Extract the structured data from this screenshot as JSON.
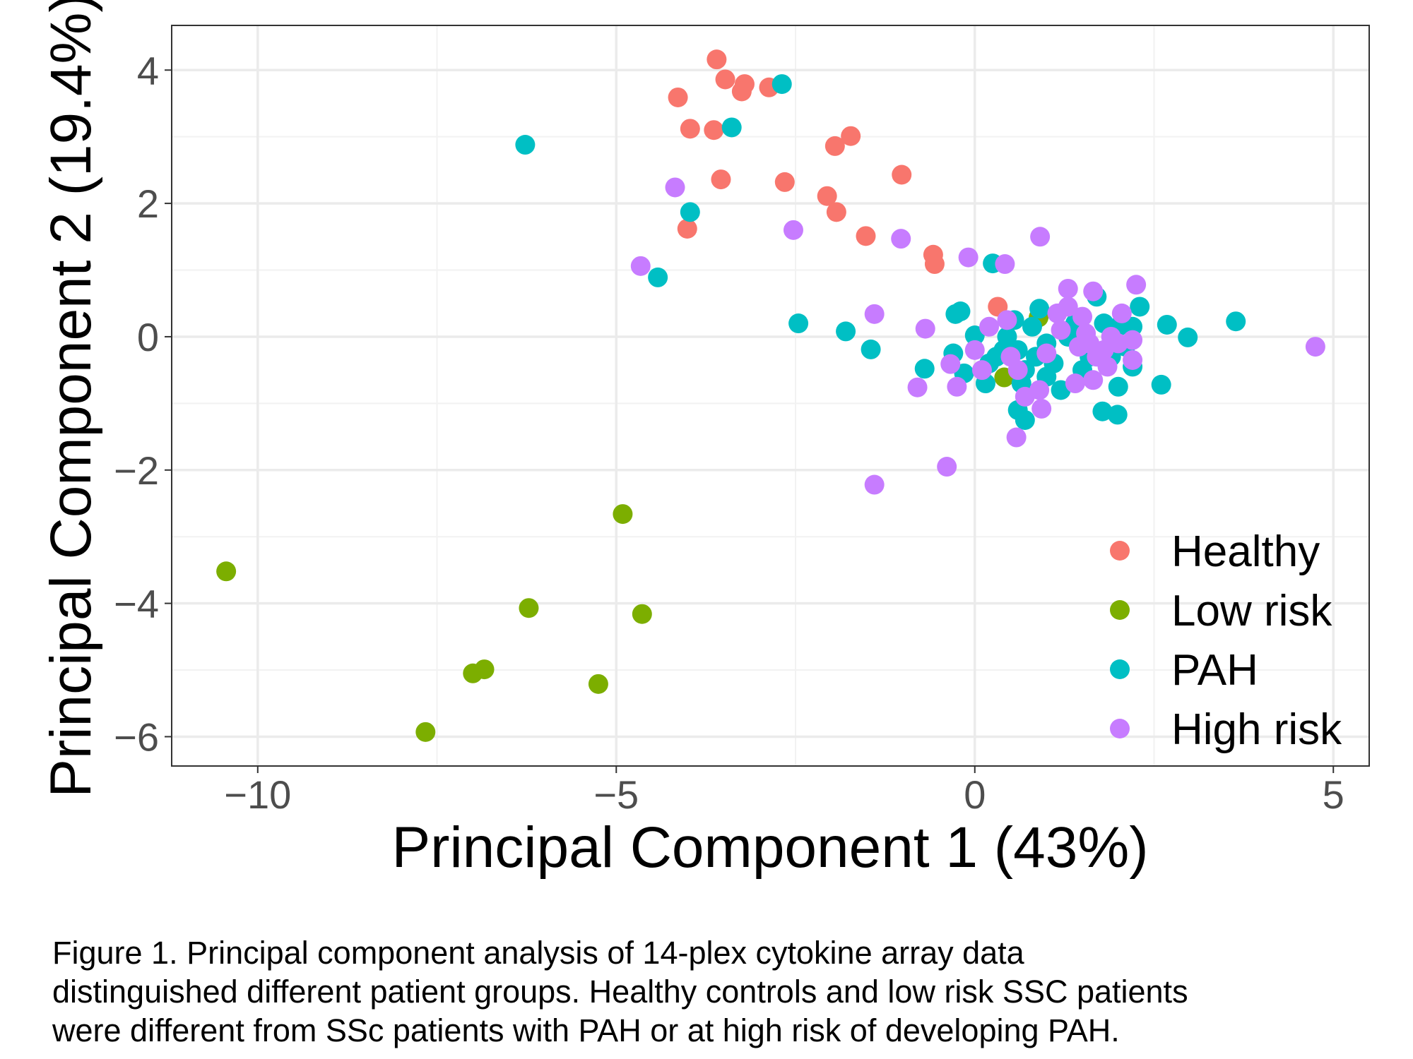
{
  "chart_data": {
    "type": "scatter",
    "title": "",
    "xlabel": "Principal Component 1 (43%)",
    "ylabel": "Principal Component 2 (19.4%)",
    "xlim": [
      -11.2,
      5.5
    ],
    "ylim": [
      -6.44,
      4.67
    ],
    "xticks": [
      -10,
      -5,
      0,
      5
    ],
    "xtick_labels": [
      "−10",
      "−5",
      "0",
      "5"
    ],
    "yticks": [
      4,
      2,
      0,
      -2,
      -4,
      -6
    ],
    "ytick_labels": [
      "4",
      "2",
      "0",
      "−2",
      "−4",
      "−6"
    ],
    "grid": true,
    "legend_position": "bottom-right-inside",
    "series": [
      {
        "name": "Healthy",
        "color": "#F8766D",
        "points": [
          [
            -3.6,
            4.16
          ],
          [
            -4.14,
            3.59
          ],
          [
            -3.48,
            3.86
          ],
          [
            -3.21,
            3.79
          ],
          [
            -3.25,
            3.68
          ],
          [
            -2.87,
            3.74
          ],
          [
            -3.97,
            3.12
          ],
          [
            -3.64,
            3.1
          ],
          [
            -3.54,
            2.36
          ],
          [
            -1.95,
            2.86
          ],
          [
            -1.73,
            3.01
          ],
          [
            -1.02,
            2.43
          ],
          [
            -2.65,
            2.32
          ],
          [
            -2.06,
            2.11
          ],
          [
            -1.93,
            1.87
          ],
          [
            -4.01,
            1.62
          ],
          [
            -1.52,
            1.51
          ],
          [
            -0.58,
            1.23
          ],
          [
            -0.56,
            1.09
          ],
          [
            0.32,
            0.45
          ]
        ]
      },
      {
        "name": "Low risk",
        "color": "#7CAE00",
        "points": [
          [
            -10.44,
            -3.52
          ],
          [
            -7.66,
            -5.93
          ],
          [
            -7.0,
            -5.05
          ],
          [
            -6.84,
            -4.99
          ],
          [
            -6.22,
            -4.07
          ],
          [
            -5.25,
            -5.21
          ],
          [
            -4.91,
            -2.66
          ],
          [
            -4.64,
            -4.16
          ],
          [
            0.89,
            0.29
          ],
          [
            0.41,
            -0.61
          ]
        ]
      },
      {
        "name": "PAH",
        "color": "#00BFC4",
        "points": [
          [
            -6.27,
            2.88
          ],
          [
            -2.69,
            3.79
          ],
          [
            -3.39,
            3.14
          ],
          [
            -3.97,
            1.87
          ],
          [
            -4.42,
            0.89
          ],
          [
            -2.46,
            0.2
          ],
          [
            -1.8,
            0.08
          ],
          [
            -1.45,
            -0.19
          ],
          [
            -0.7,
            -0.48
          ],
          [
            0.25,
            1.1
          ],
          [
            3.64,
            0.23
          ],
          [
            2.97,
            -0.01
          ],
          [
            2.68,
            0.18
          ],
          [
            2.6,
            -0.72
          ],
          [
            1.78,
            -1.12
          ],
          [
            1.99,
            -1.17
          ],
          [
            -0.27,
            0.34
          ],
          [
            -0.2,
            0.38
          ],
          [
            0.0,
            0.02
          ],
          [
            0.2,
            -0.4
          ],
          [
            0.3,
            -0.3
          ],
          [
            0.45,
            0.0
          ],
          [
            0.55,
            0.25
          ],
          [
            0.6,
            -0.2
          ],
          [
            0.7,
            -0.5
          ],
          [
            0.8,
            0.15
          ],
          [
            0.9,
            0.42
          ],
          [
            1.0,
            -0.1
          ],
          [
            1.1,
            -0.4
          ],
          [
            1.3,
            0.0
          ],
          [
            1.4,
            0.2
          ],
          [
            1.5,
            -0.5
          ],
          [
            1.7,
            0.6
          ],
          [
            1.8,
            0.2
          ],
          [
            1.9,
            -0.3
          ],
          [
            2.0,
            0.15
          ],
          [
            2.1,
            -0.15
          ],
          [
            2.2,
            -0.45
          ],
          [
            2.3,
            0.45
          ],
          [
            2.2,
            0.15
          ],
          [
            0.6,
            -1.1
          ],
          [
            0.7,
            -1.25
          ],
          [
            0.65,
            -0.7
          ],
          [
            -0.15,
            -0.55
          ],
          [
            -0.3,
            -0.25
          ],
          [
            0.15,
            -0.7
          ],
          [
            1.0,
            -0.6
          ],
          [
            1.6,
            -0.3
          ],
          [
            0.4,
            -0.2
          ],
          [
            1.2,
            -0.8
          ],
          [
            2.0,
            -0.75
          ],
          [
            0.85,
            -0.3
          ]
        ]
      },
      {
        "name": "High risk",
        "color": "#C77CFF",
        "points": [
          [
            -4.18,
            2.24
          ],
          [
            -2.53,
            1.6
          ],
          [
            -4.66,
            1.06
          ],
          [
            -1.03,
            1.47
          ],
          [
            -1.4,
            0.34
          ],
          [
            -0.69,
            0.12
          ],
          [
            -0.09,
            1.19
          ],
          [
            0.91,
            1.5
          ],
          [
            0.42,
            1.09
          ],
          [
            4.75,
            -0.15
          ],
          [
            2.25,
            0.78
          ],
          [
            -0.8,
            -0.76
          ],
          [
            -0.39,
            -1.95
          ],
          [
            -1.4,
            -2.22
          ],
          [
            0.58,
            -1.51
          ],
          [
            0.93,
            -1.08
          ],
          [
            -0.34,
            -0.41
          ],
          [
            -0.25,
            -0.75
          ],
          [
            0.0,
            -0.2
          ],
          [
            0.2,
            0.15
          ],
          [
            0.45,
            0.25
          ],
          [
            0.6,
            -0.5
          ],
          [
            0.7,
            -0.9
          ],
          [
            0.9,
            -0.8
          ],
          [
            1.0,
            -0.25
          ],
          [
            1.15,
            0.35
          ],
          [
            1.3,
            0.45
          ],
          [
            1.3,
            0.72
          ],
          [
            1.45,
            -0.15
          ],
          [
            1.5,
            0.3
          ],
          [
            1.65,
            0.68
          ],
          [
            1.7,
            -0.3
          ],
          [
            1.8,
            -0.2
          ],
          [
            1.9,
            0.0
          ],
          [
            2.0,
            -0.1
          ],
          [
            2.05,
            0.35
          ],
          [
            2.2,
            -0.05
          ],
          [
            2.2,
            -0.35
          ],
          [
            1.4,
            -0.7
          ],
          [
            1.65,
            -0.65
          ],
          [
            1.2,
            0.1
          ],
          [
            1.55,
            0.05
          ],
          [
            0.5,
            -0.3
          ],
          [
            0.1,
            -0.5
          ],
          [
            1.85,
            -0.45
          ],
          [
            1.6,
            -0.1
          ]
        ]
      }
    ]
  },
  "caption": {
    "lines": [
      "Figure 1. Principal component analysis of 14-plex cytokine array data",
      "distinguished different patient groups. Healthy controls and low risk SSC patients",
      "were different from SSc patients with PAH or at high risk of developing PAH."
    ]
  }
}
